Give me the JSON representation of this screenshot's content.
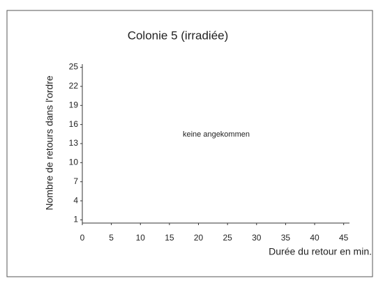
{
  "chart_data": {
    "type": "scatter",
    "title": "Colonie 5 (irradiée)",
    "annotation": "keine angekommen",
    "x_label": "Durée du retour en min.",
    "y_label": "Nombre de retours dans l'ordre",
    "series": [],
    "xlim": [
      0,
      46
    ],
    "xticks": [
      0,
      5,
      10,
      15,
      20,
      25,
      30,
      35,
      40,
      45
    ],
    "ylim": [
      0.5,
      25.5
    ],
    "yticks": [
      1,
      4,
      7,
      10,
      13,
      16,
      19,
      22,
      25
    ],
    "grid": false
  }
}
